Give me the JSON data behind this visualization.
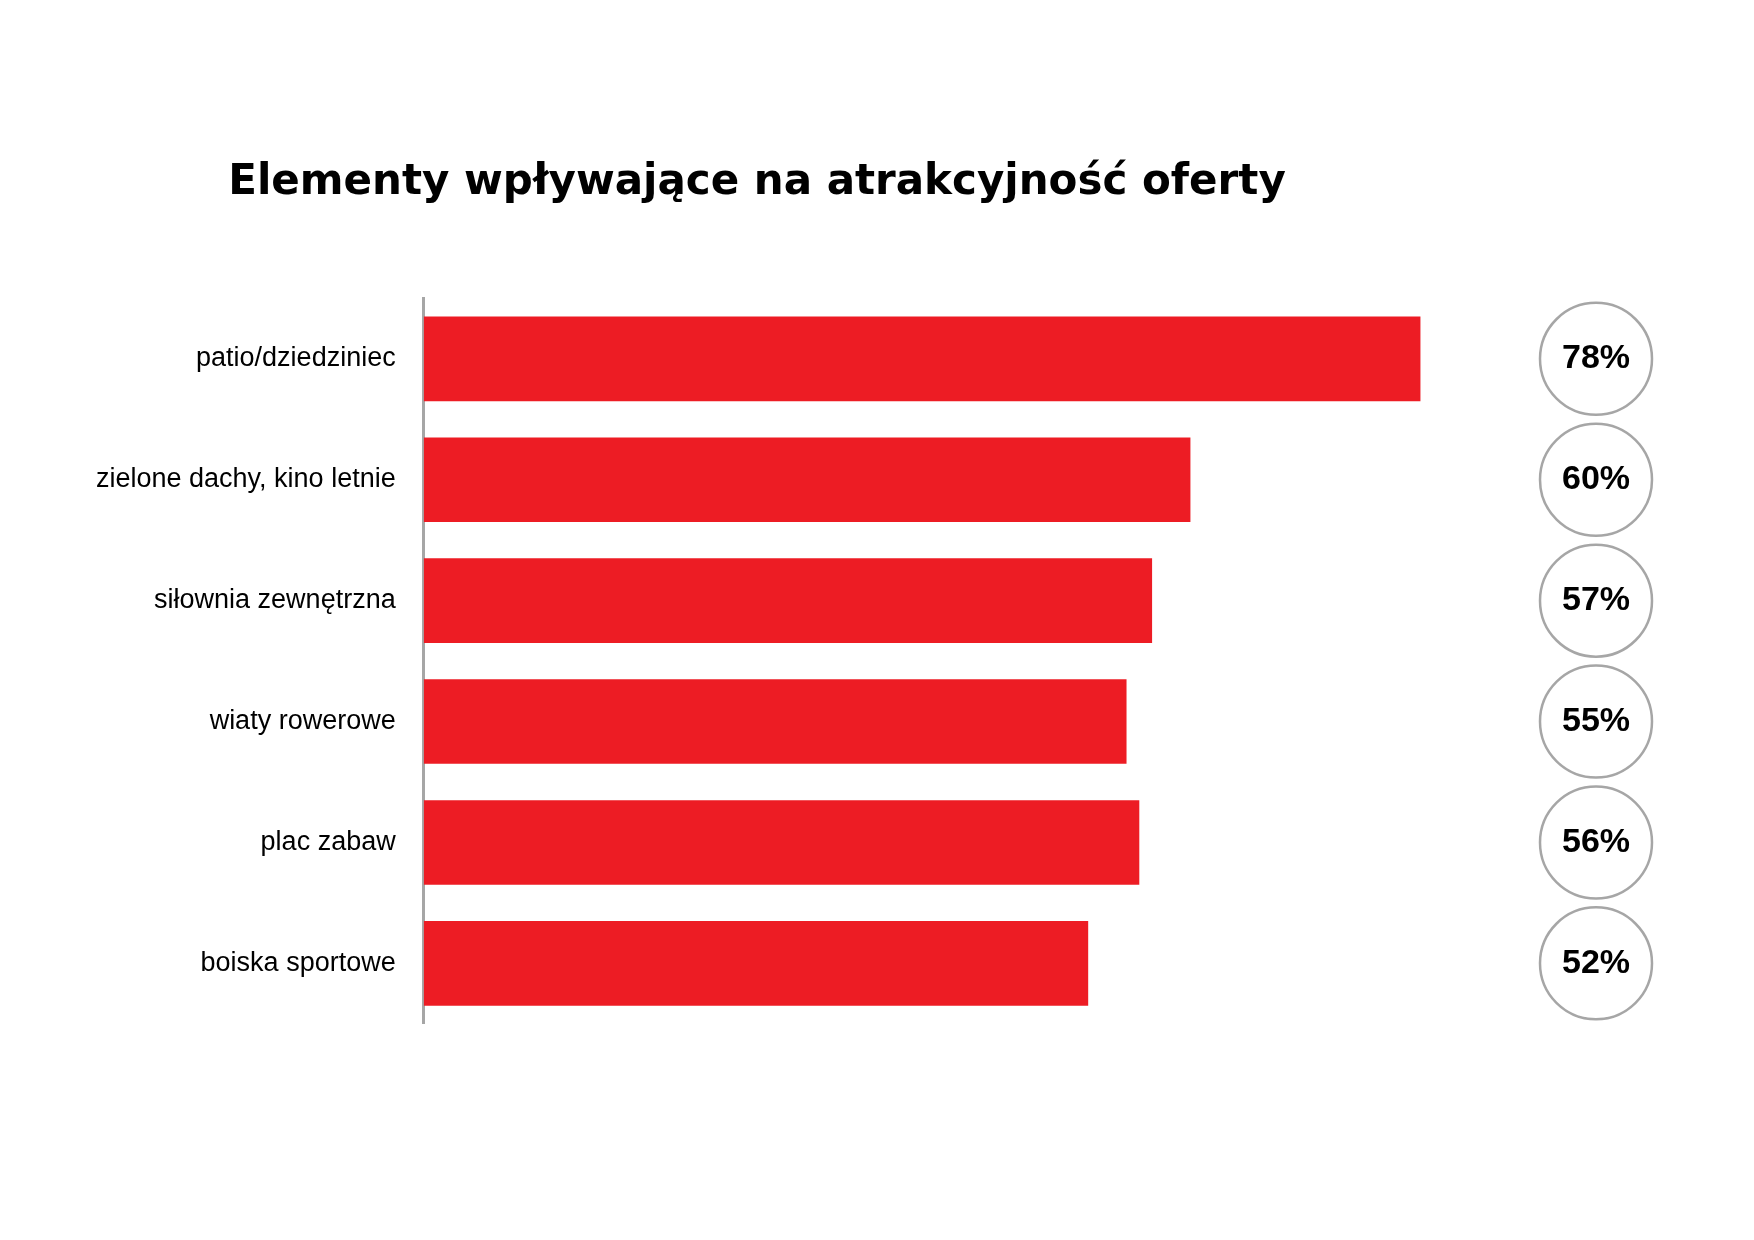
{
  "chart_data": {
    "type": "bar",
    "orientation": "horizontal",
    "title": "Elementy wpływające na atrakcyjność oferty",
    "categories": [
      "patio/dziedziniec",
      "zielone dachy, kino letnie",
      "siłownia zewnętrzna",
      "wiaty rowerowe",
      "plac zabaw",
      "boiska sportowe"
    ],
    "values": [
      78,
      60,
      57,
      55,
      56,
      52
    ],
    "value_labels": [
      "78%",
      "60%",
      "57%",
      "55%",
      "56%",
      "52%"
    ],
    "color": "#ed1c24",
    "legend": false
  }
}
